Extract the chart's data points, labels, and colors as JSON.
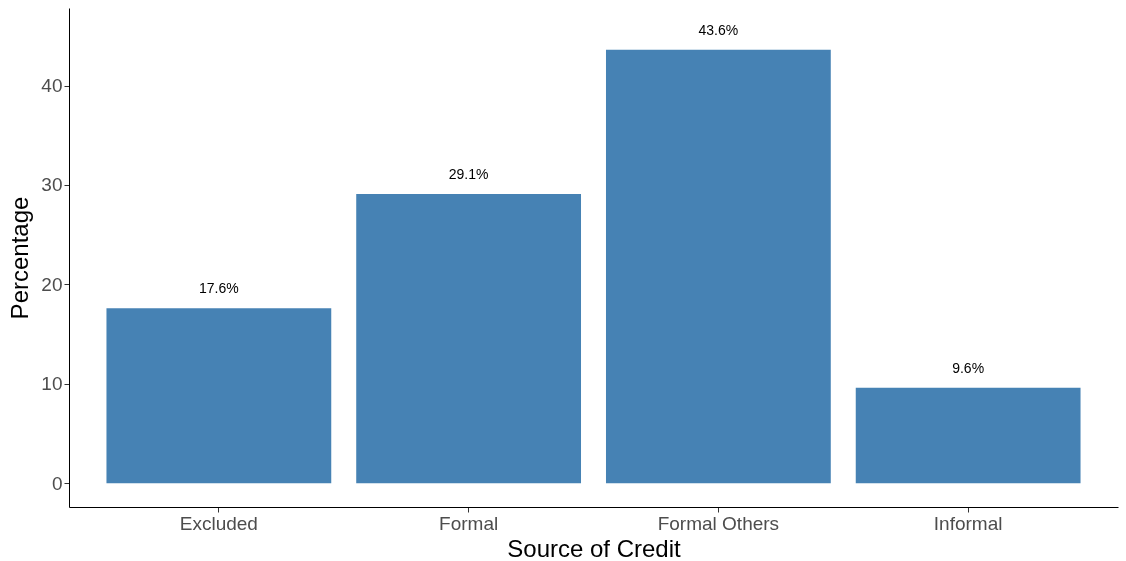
{
  "chart_data": {
    "type": "bar",
    "xlabel": "Source of Credit",
    "ylabel": "Percentage",
    "categories": [
      "Excluded",
      "Formal",
      "Formal Others",
      "Informal"
    ],
    "values": [
      17.6,
      29.1,
      43.6,
      9.6
    ],
    "value_labels": [
      "17.6%",
      "29.1%",
      "43.6%",
      "9.6%"
    ],
    "color": "#4682b4",
    "ylim": [
      -2.4,
      47.8
    ],
    "yticks": [
      0,
      10,
      20,
      30,
      40
    ],
    "grid": false
  }
}
